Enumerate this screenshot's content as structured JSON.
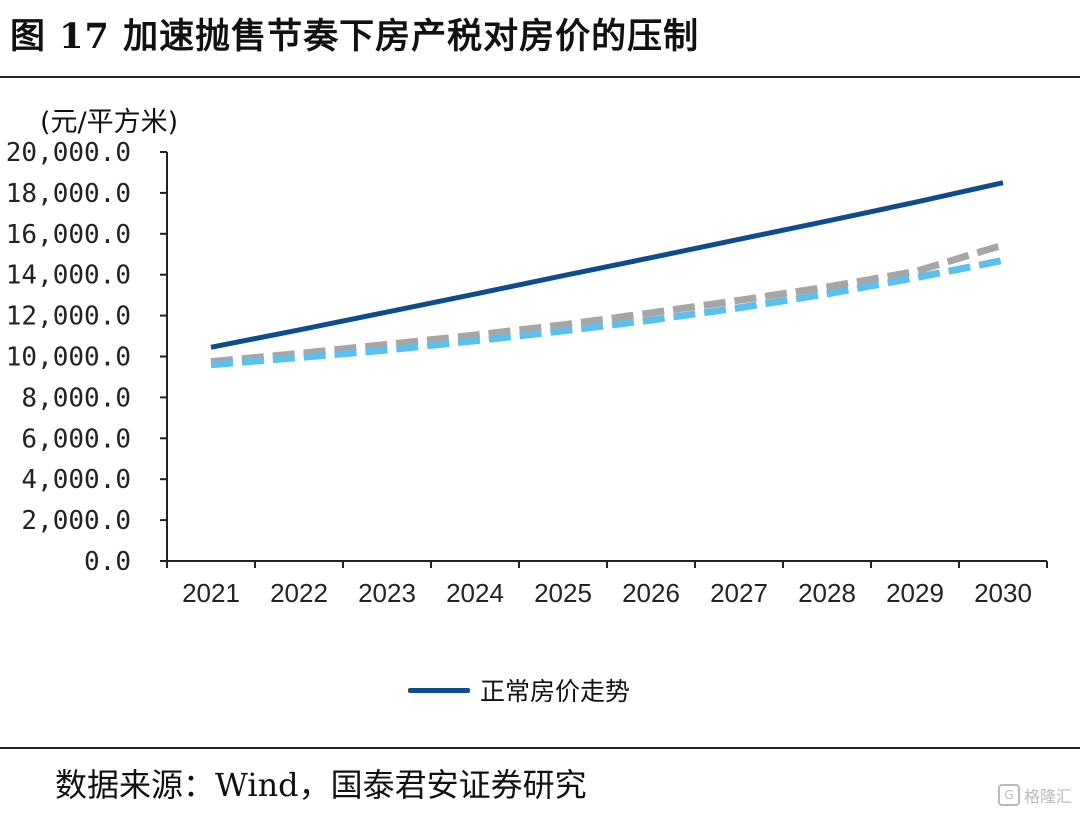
{
  "header": {
    "title": "图 17  加速抛售节奏下房产税对房价的压制"
  },
  "footer": {
    "source": "数据来源：Wind，国泰君安证券研究"
  },
  "watermark": {
    "logo": "G",
    "text": "格隆汇"
  },
  "chart_data": {
    "type": "line",
    "unit_label": "(元/平方米)",
    "x": [
      "2021",
      "2022",
      "2023",
      "2024",
      "2025",
      "2026",
      "2027",
      "2028",
      "2029",
      "2030"
    ],
    "ylim": [
      0,
      20000
    ],
    "yticks": [
      "0.0",
      "2,000.0",
      "4,000.0",
      "6,000.0",
      "8,000.0",
      "10,000.0",
      "12,000.0",
      "14,000.0",
      "16,000.0",
      "18,000.0",
      "20,000.0"
    ],
    "ytick_values": [
      0,
      2000,
      4000,
      6000,
      8000,
      10000,
      12000,
      14000,
      16000,
      18000,
      20000
    ],
    "grid": false,
    "legend_position": "bottom-center",
    "series": [
      {
        "name": "正常房价走势",
        "color": "#0d4d8f",
        "style": "solid",
        "values": [
          10450,
          11300,
          12170,
          13050,
          13950,
          14830,
          15730,
          16620,
          17540,
          18500
        ]
      },
      {
        "color": "#a6a6a6",
        "style": "dashed",
        "values": [
          9750,
          10150,
          10590,
          11050,
          11550,
          12130,
          12750,
          13400,
          14150,
          15450
        ]
      },
      {
        "color": "#5bc0ef",
        "style": "dashed",
        "values": [
          9600,
          9950,
          10320,
          10770,
          11250,
          11780,
          12380,
          13060,
          13850,
          14700
        ]
      }
    ]
  }
}
